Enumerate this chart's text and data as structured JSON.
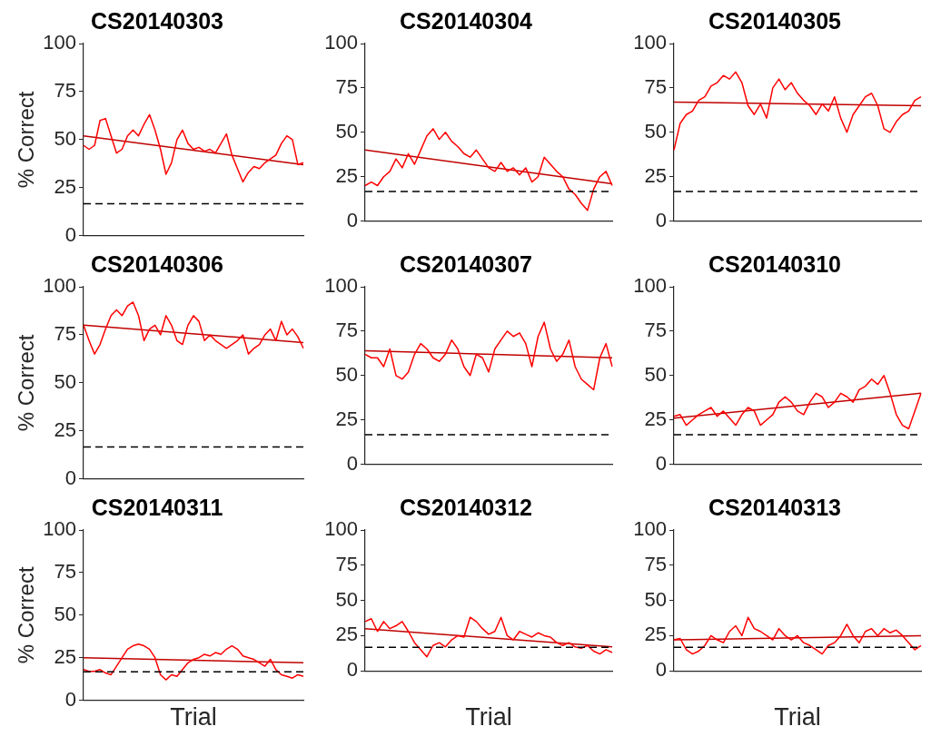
{
  "chart_data": [
    {
      "type": "line",
      "title": "CS20140303",
      "ylabel": "% Correct",
      "tick_labels": "y",
      "categories": [
        null,
        null,
        null,
        null,
        null,
        null,
        null,
        null,
        null,
        null,
        null,
        null,
        null,
        null,
        null,
        null,
        null,
        null,
        null,
        null,
        null,
        null,
        null,
        null,
        null,
        null,
        null,
        null,
        null,
        null,
        null,
        null,
        null,
        null,
        null,
        null,
        null,
        null,
        null,
        null,
        null
      ],
      "ylim": [
        0,
        100
      ],
      "yticks": [
        0,
        25,
        50,
        75,
        100
      ],
      "ref_lines": [
        {
          "axis": "y",
          "value": 16.7,
          "color": "#000000",
          "line_style": "dashed"
        }
      ],
      "series": [
        {
          "color": "#ff0000",
          "values": [
            47,
            45,
            47,
            60,
            61,
            52,
            43,
            45,
            52,
            55,
            52,
            58,
            63,
            55,
            45,
            32,
            38,
            50,
            55,
            48,
            45,
            46,
            44,
            45,
            43,
            48,
            53,
            42,
            35,
            28,
            33,
            36,
            35,
            38,
            40,
            42,
            48,
            52,
            50,
            37,
            38
          ]
        },
        {
          "color": "#c00000",
          "values": [
            52,
            null,
            null,
            null,
            null,
            null,
            null,
            null,
            null,
            null,
            null,
            null,
            null,
            null,
            null,
            null,
            null,
            null,
            null,
            null,
            null,
            null,
            null,
            null,
            null,
            null,
            null,
            null,
            null,
            null,
            null,
            null,
            null,
            null,
            null,
            null,
            null,
            null,
            null,
            null,
            37
          ]
        }
      ]
    },
    {
      "type": "line",
      "title": "CS20140304",
      "categories": [
        null,
        null,
        null,
        null,
        null,
        null,
        null,
        null,
        null,
        null,
        null,
        null,
        null,
        null,
        null,
        null,
        null,
        null,
        null,
        null,
        null,
        null,
        null,
        null,
        null,
        null,
        null,
        null,
        null,
        null,
        null,
        null,
        null,
        null,
        null,
        null,
        null,
        null,
        null,
        null,
        null
      ],
      "ylim": [
        0,
        100
      ],
      "yticks": [
        0,
        25,
        50,
        75,
        100
      ],
      "ref_lines": [
        {
          "axis": "y",
          "value": 16.7,
          "color": "#000000",
          "line_style": "dashed"
        }
      ],
      "series": [
        {
          "color": "#ff0000",
          "values": [
            20,
            22,
            20,
            25,
            28,
            35,
            30,
            38,
            32,
            40,
            48,
            52,
            46,
            50,
            45,
            42,
            38,
            36,
            40,
            35,
            30,
            28,
            33,
            28,
            30,
            26,
            30,
            22,
            25,
            36,
            32,
            28,
            25,
            18,
            15,
            10,
            6,
            18,
            25,
            28,
            20
          ]
        },
        {
          "color": "#c00000",
          "values": [
            40,
            null,
            null,
            null,
            null,
            null,
            null,
            null,
            null,
            null,
            null,
            null,
            null,
            null,
            null,
            null,
            null,
            null,
            null,
            null,
            null,
            null,
            null,
            null,
            null,
            null,
            null,
            null,
            null,
            null,
            null,
            null,
            null,
            null,
            null,
            null,
            null,
            null,
            null,
            null,
            21
          ]
        }
      ]
    },
    {
      "type": "line",
      "title": "CS20140305",
      "categories": [
        null,
        null,
        null,
        null,
        null,
        null,
        null,
        null,
        null,
        null,
        null,
        null,
        null,
        null,
        null,
        null,
        null,
        null,
        null,
        null,
        null,
        null,
        null,
        null,
        null,
        null,
        null,
        null,
        null,
        null,
        null,
        null,
        null,
        null,
        null,
        null,
        null,
        null,
        null,
        null,
        null
      ],
      "ylim": [
        0,
        100
      ],
      "yticks": [
        0,
        25,
        50,
        75,
        100
      ],
      "ref_lines": [
        {
          "axis": "y",
          "value": 16.7,
          "color": "#000000",
          "line_style": "dashed"
        }
      ],
      "series": [
        {
          "color": "#ff0000",
          "values": [
            40,
            55,
            60,
            62,
            68,
            70,
            76,
            78,
            82,
            80,
            84,
            78,
            65,
            60,
            66,
            58,
            75,
            80,
            74,
            78,
            72,
            68,
            65,
            60,
            66,
            62,
            70,
            58,
            50,
            60,
            65,
            70,
            72,
            65,
            52,
            50,
            56,
            60,
            62,
            68,
            70
          ]
        },
        {
          "color": "#c00000",
          "values": [
            67,
            null,
            null,
            null,
            null,
            null,
            null,
            null,
            null,
            null,
            null,
            null,
            null,
            null,
            null,
            null,
            null,
            null,
            null,
            null,
            null,
            null,
            null,
            null,
            null,
            null,
            null,
            null,
            null,
            null,
            null,
            null,
            null,
            null,
            null,
            null,
            null,
            null,
            null,
            null,
            65
          ]
        }
      ]
    },
    {
      "type": "line",
      "title": "CS20140306",
      "ylabel": "% Correct",
      "tick_labels": "y",
      "categories": [
        null,
        null,
        null,
        null,
        null,
        null,
        null,
        null,
        null,
        null,
        null,
        null,
        null,
        null,
        null,
        null,
        null,
        null,
        null,
        null,
        null,
        null,
        null,
        null,
        null,
        null,
        null,
        null,
        null,
        null,
        null,
        null,
        null,
        null,
        null,
        null,
        null,
        null,
        null,
        null,
        null
      ],
      "ylim": [
        0,
        100
      ],
      "yticks": [
        0,
        25,
        50,
        75,
        100
      ],
      "ref_lines": [
        {
          "axis": "y",
          "value": 16.7,
          "color": "#000000",
          "line_style": "dashed"
        }
      ],
      "series": [
        {
          "color": "#ff0000",
          "values": [
            80,
            72,
            65,
            70,
            78,
            85,
            88,
            85,
            90,
            92,
            85,
            72,
            78,
            80,
            75,
            85,
            80,
            72,
            70,
            80,
            85,
            82,
            72,
            75,
            72,
            70,
            68,
            70,
            72,
            75,
            65,
            68,
            70,
            75,
            78,
            72,
            82,
            75,
            78,
            74,
            68
          ]
        },
        {
          "color": "#c00000",
          "values": [
            80,
            null,
            null,
            null,
            null,
            null,
            null,
            null,
            null,
            null,
            null,
            null,
            null,
            null,
            null,
            null,
            null,
            null,
            null,
            null,
            null,
            null,
            null,
            null,
            null,
            null,
            null,
            null,
            null,
            null,
            null,
            null,
            null,
            null,
            null,
            null,
            null,
            null,
            null,
            null,
            71
          ]
        }
      ]
    },
    {
      "type": "line",
      "title": "CS20140307",
      "categories": [
        null,
        null,
        null,
        null,
        null,
        null,
        null,
        null,
        null,
        null,
        null,
        null,
        null,
        null,
        null,
        null,
        null,
        null,
        null,
        null,
        null,
        null,
        null,
        null,
        null,
        null,
        null,
        null,
        null,
        null,
        null,
        null,
        null,
        null,
        null,
        null,
        null,
        null,
        null,
        null,
        null
      ],
      "ylim": [
        0,
        100
      ],
      "yticks": [
        0,
        25,
        50,
        75,
        100
      ],
      "ref_lines": [
        {
          "axis": "y",
          "value": 16.7,
          "color": "#000000",
          "line_style": "dashed"
        }
      ],
      "series": [
        {
          "color": "#ff0000",
          "values": [
            62,
            60,
            60,
            55,
            65,
            50,
            48,
            52,
            62,
            68,
            65,
            60,
            58,
            62,
            70,
            65,
            55,
            50,
            62,
            60,
            52,
            65,
            70,
            75,
            72,
            74,
            68,
            55,
            72,
            80,
            65,
            58,
            62,
            70,
            55,
            48,
            45,
            42,
            60,
            68,
            55
          ]
        },
        {
          "color": "#c00000",
          "values": [
            64,
            null,
            null,
            null,
            null,
            null,
            null,
            null,
            null,
            null,
            null,
            null,
            null,
            null,
            null,
            null,
            null,
            null,
            null,
            null,
            null,
            null,
            null,
            null,
            null,
            null,
            null,
            null,
            null,
            null,
            null,
            null,
            null,
            null,
            null,
            null,
            null,
            null,
            null,
            null,
            60
          ]
        }
      ]
    },
    {
      "type": "line",
      "title": "CS20140310",
      "categories": [
        null,
        null,
        null,
        null,
        null,
        null,
        null,
        null,
        null,
        null,
        null,
        null,
        null,
        null,
        null,
        null,
        null,
        null,
        null,
        null,
        null,
        null,
        null,
        null,
        null,
        null,
        null,
        null,
        null,
        null,
        null,
        null,
        null,
        null,
        null,
        null,
        null,
        null,
        null,
        null,
        null
      ],
      "ylim": [
        0,
        100
      ],
      "yticks": [
        0,
        25,
        50,
        75,
        100
      ],
      "ref_lines": [
        {
          "axis": "y",
          "value": 16.7,
          "color": "#000000",
          "line_style": "dashed"
        }
      ],
      "series": [
        {
          "color": "#ff0000",
          "values": [
            27,
            28,
            22,
            25,
            28,
            30,
            32,
            27,
            30,
            26,
            22,
            28,
            32,
            30,
            22,
            25,
            28,
            35,
            38,
            35,
            30,
            28,
            35,
            40,
            38,
            32,
            35,
            40,
            38,
            35,
            42,
            44,
            48,
            45,
            50,
            40,
            28,
            22,
            20,
            30,
            40
          ]
        },
        {
          "color": "#c00000",
          "values": [
            26,
            null,
            null,
            null,
            null,
            null,
            null,
            null,
            null,
            null,
            null,
            null,
            null,
            null,
            null,
            null,
            null,
            null,
            null,
            null,
            null,
            null,
            null,
            null,
            null,
            null,
            null,
            null,
            null,
            null,
            null,
            null,
            null,
            null,
            null,
            null,
            null,
            null,
            null,
            null,
            40
          ]
        }
      ]
    },
    {
      "type": "line",
      "title": "CS20140311",
      "ylabel": "% Correct",
      "xlabel": "Trial",
      "tick_labels": "y",
      "categories": [
        null,
        null,
        null,
        null,
        null,
        null,
        null,
        null,
        null,
        null,
        null,
        null,
        null,
        null,
        null,
        null,
        null,
        null,
        null,
        null,
        null,
        null,
        null,
        null,
        null,
        null,
        null,
        null,
        null,
        null,
        null,
        null,
        null,
        null,
        null,
        null,
        null,
        null,
        null,
        null,
        null
      ],
      "ylim": [
        0,
        100
      ],
      "yticks": [
        0,
        25,
        50,
        75,
        100
      ],
      "ref_lines": [
        {
          "axis": "y",
          "value": 16.7,
          "color": "#000000",
          "line_style": "dashed"
        }
      ],
      "series": [
        {
          "color": "#ff0000",
          "values": [
            18,
            17,
            17,
            18,
            16,
            15,
            20,
            25,
            30,
            32,
            33,
            32,
            30,
            25,
            15,
            12,
            15,
            14,
            18,
            22,
            24,
            25,
            27,
            26,
            28,
            27,
            30,
            32,
            30,
            26,
            25,
            24,
            22,
            20,
            24,
            18,
            15,
            14,
            13,
            15,
            14
          ]
        },
        {
          "color": "#c00000",
          "values": [
            25,
            null,
            null,
            null,
            null,
            null,
            null,
            null,
            null,
            null,
            null,
            null,
            null,
            null,
            null,
            null,
            null,
            null,
            null,
            null,
            null,
            null,
            null,
            null,
            null,
            null,
            null,
            null,
            null,
            null,
            null,
            null,
            null,
            null,
            null,
            null,
            null,
            null,
            null,
            null,
            22
          ]
        }
      ]
    },
    {
      "type": "line",
      "title": "CS20140312",
      "xlabel": "Trial",
      "categories": [
        null,
        null,
        null,
        null,
        null,
        null,
        null,
        null,
        null,
        null,
        null,
        null,
        null,
        null,
        null,
        null,
        null,
        null,
        null,
        null,
        null,
        null,
        null,
        null,
        null,
        null,
        null,
        null,
        null,
        null,
        null,
        null,
        null,
        null,
        null,
        null,
        null,
        null,
        null,
        null,
        null
      ],
      "ylim": [
        0,
        100
      ],
      "yticks": [
        0,
        25,
        50,
        75,
        100
      ],
      "ref_lines": [
        {
          "axis": "y",
          "value": 16.7,
          "color": "#000000",
          "line_style": "dashed"
        }
      ],
      "series": [
        {
          "color": "#ff0000",
          "values": [
            35,
            37,
            28,
            35,
            30,
            32,
            35,
            28,
            20,
            15,
            10,
            18,
            20,
            17,
            22,
            25,
            24,
            38,
            35,
            30,
            26,
            28,
            38,
            25,
            22,
            28,
            26,
            24,
            27,
            25,
            24,
            20,
            18,
            20,
            17,
            16,
            18,
            14,
            12,
            15,
            13
          ]
        },
        {
          "color": "#c00000",
          "values": [
            30,
            null,
            null,
            null,
            null,
            null,
            null,
            null,
            null,
            null,
            null,
            null,
            null,
            null,
            null,
            null,
            null,
            null,
            null,
            null,
            null,
            null,
            null,
            null,
            null,
            null,
            null,
            null,
            null,
            null,
            null,
            null,
            null,
            null,
            null,
            null,
            null,
            null,
            null,
            null,
            17
          ]
        }
      ]
    },
    {
      "type": "line",
      "title": "CS20140313",
      "xlabel": "Trial",
      "categories": [
        null,
        null,
        null,
        null,
        null,
        null,
        null,
        null,
        null,
        null,
        null,
        null,
        null,
        null,
        null,
        null,
        null,
        null,
        null,
        null,
        null,
        null,
        null,
        null,
        null,
        null,
        null,
        null,
        null,
        null,
        null,
        null,
        null,
        null,
        null,
        null,
        null,
        null,
        null,
        null,
        null
      ],
      "ylim": [
        0,
        100
      ],
      "yticks": [
        0,
        25,
        50,
        75,
        100
      ],
      "ref_lines": [
        {
          "axis": "y",
          "value": 16.7,
          "color": "#000000",
          "line_style": "dashed"
        }
      ],
      "series": [
        {
          "color": "#ff0000",
          "values": [
            22,
            23,
            15,
            12,
            14,
            18,
            25,
            22,
            20,
            28,
            32,
            25,
            38,
            30,
            28,
            25,
            22,
            30,
            25,
            22,
            25,
            20,
            18,
            15,
            12,
            18,
            20,
            25,
            33,
            25,
            20,
            28,
            30,
            25,
            30,
            27,
            29,
            25,
            20,
            15,
            18
          ]
        },
        {
          "color": "#c00000",
          "values": [
            22,
            null,
            null,
            null,
            null,
            null,
            null,
            null,
            null,
            null,
            null,
            null,
            null,
            null,
            null,
            null,
            null,
            null,
            null,
            null,
            null,
            null,
            null,
            null,
            null,
            null,
            null,
            null,
            null,
            null,
            null,
            null,
            null,
            null,
            null,
            null,
            null,
            null,
            null,
            null,
            25
          ]
        }
      ]
    }
  ]
}
